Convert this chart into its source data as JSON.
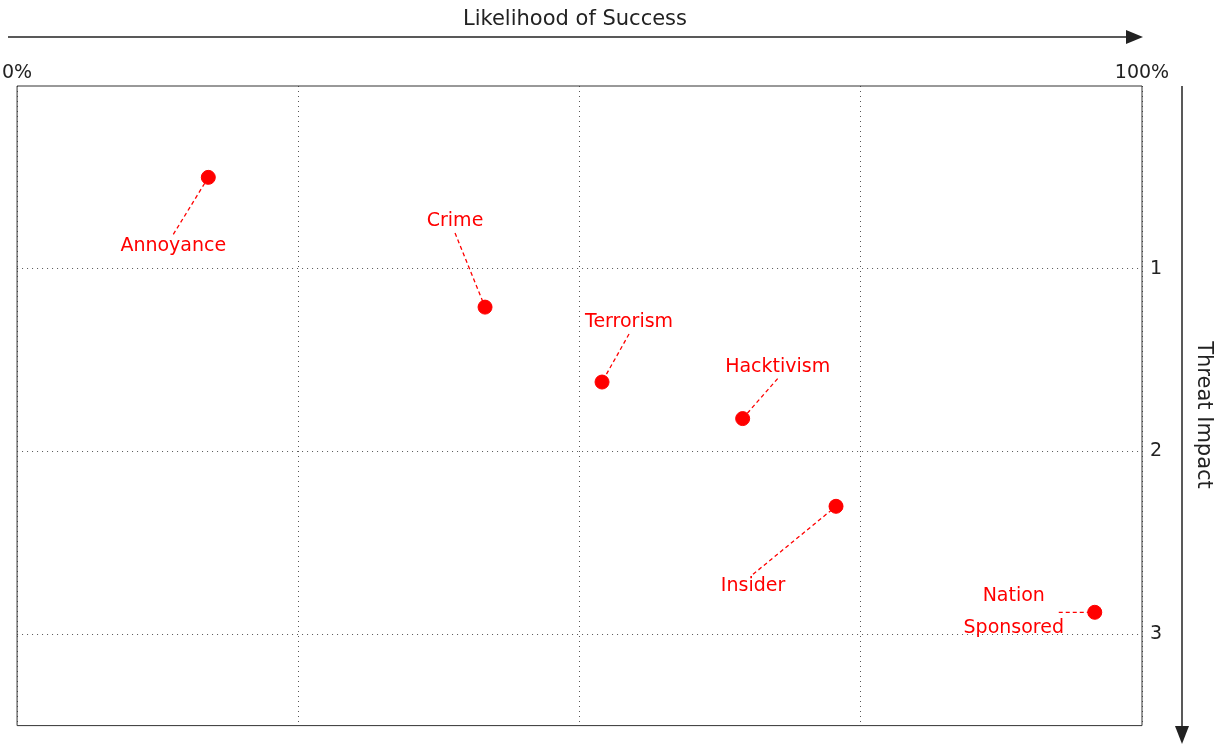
{
  "chart_data": {
    "type": "scatter",
    "xlabel": "Likelihood of Success",
    "ylabel": "Threat Impact",
    "x": [
      17,
      41.6,
      52,
      64.5,
      72.8,
      95.8
    ],
    "series": [
      {
        "color": "#ff0000",
        "values": [
          0.5,
          1.21,
          1.62,
          1.82,
          2.3,
          2.88
        ]
      }
    ],
    "xlim": [
      0,
      100
    ],
    "xticks": [
      {
        "value": 0,
        "label": "0%"
      },
      {
        "value": 25,
        "label": null
      },
      {
        "value": 50,
        "label": null
      },
      {
        "value": 75,
        "label": null
      },
      {
        "value": 100,
        "label": "100%"
      }
    ],
    "ylim": [
      3.5,
      0
    ],
    "yticks": [
      1,
      2,
      3
    ],
    "annotations": [
      {
        "text": "Annoyance",
        "x": 17,
        "y": 0.5
      },
      {
        "text": "Crime",
        "x": 41.6,
        "y": 1.21
      },
      {
        "text": "Terrorism",
        "x": 52,
        "y": 1.62
      },
      {
        "text": "Hacktivism",
        "x": 64.5,
        "y": 1.82
      },
      {
        "text": "Insider",
        "x": 72.8,
        "y": 2.3
      },
      {
        "text": "Nation Sponsored",
        "x": 95.8,
        "y": 2.88
      }
    ],
    "grid": true,
    "legend": false,
    "marker": "circle"
  }
}
